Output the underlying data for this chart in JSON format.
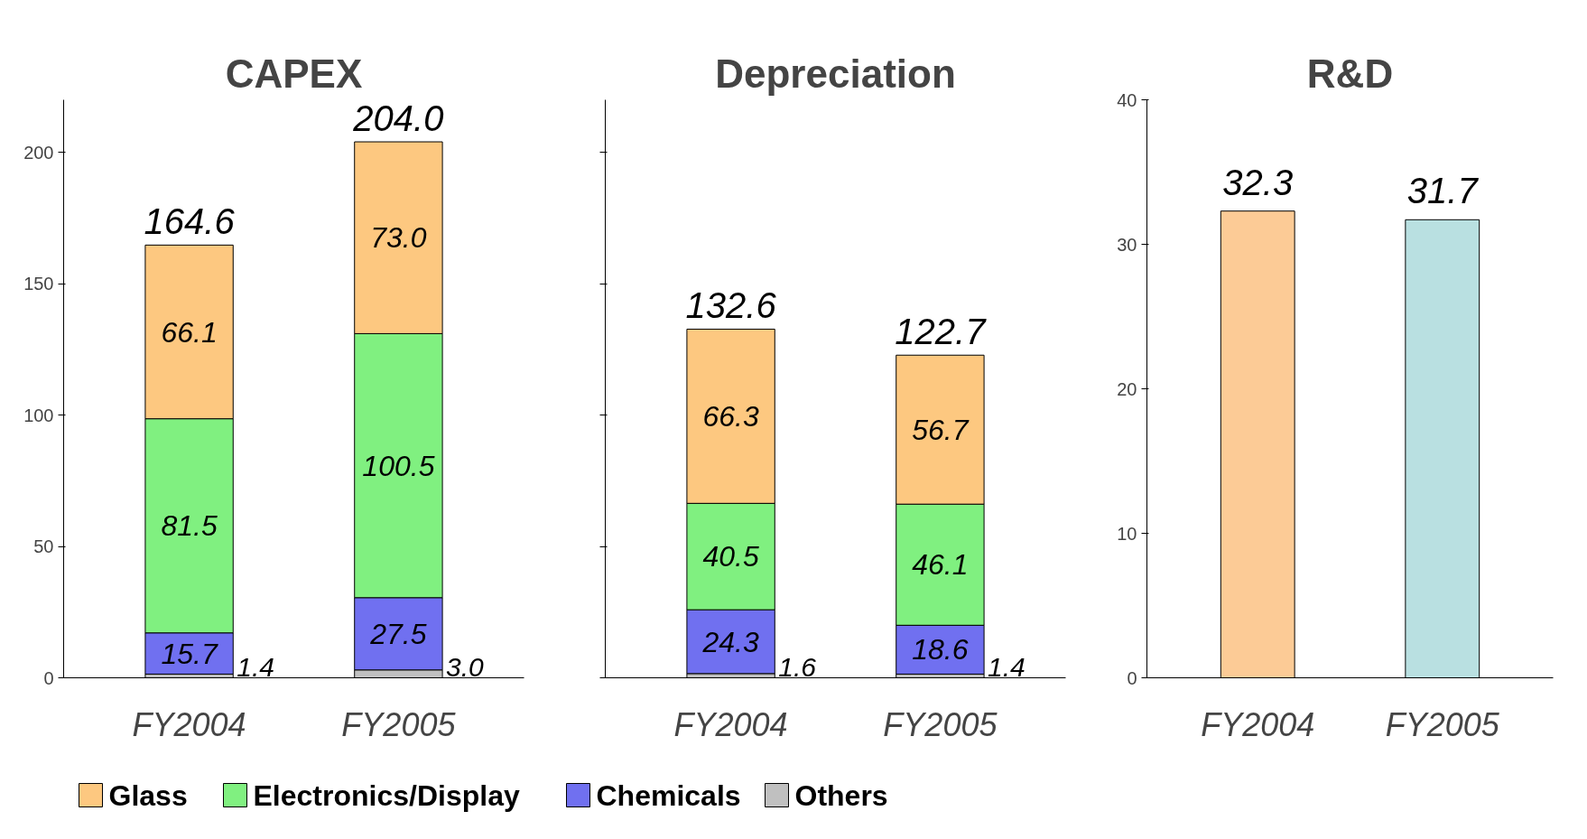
{
  "chart_data": [
    {
      "type": "bar",
      "title": "CAPEX",
      "categories": [
        "FY2004",
        "FY2005"
      ],
      "stacked": true,
      "ylim": [
        0,
        220
      ],
      "yticks": [
        0,
        50,
        100,
        150,
        200
      ],
      "grid": false,
      "legend": "bottom",
      "data_labels": true,
      "totals": [
        "164.6",
        "204.0"
      ],
      "series": [
        {
          "name": "Others",
          "color": "#c0c0c0",
          "values": [
            1.4,
            3.0
          ],
          "value_labels": [
            "1.4",
            "3.0"
          ]
        },
        {
          "name": "Chemicals",
          "color": "#7070f0",
          "values": [
            15.7,
            27.5
          ]
        },
        {
          "name": "Electronics/Display",
          "color": "#80f080",
          "values": [
            81.5,
            100.5
          ]
        },
        {
          "name": "Glass",
          "color": "#fdc880",
          "values": [
            66.1,
            73.0
          ],
          "value_labels": [
            "66.1",
            "73.0"
          ]
        }
      ]
    },
    {
      "type": "bar",
      "title": "Depreciation",
      "categories": [
        "FY2004",
        "FY2005"
      ],
      "stacked": true,
      "ylim": [
        0,
        220
      ],
      "yticks": [
        0,
        50,
        100,
        150,
        200
      ],
      "grid": false,
      "tick_labels": "x",
      "data_labels": true,
      "totals": [
        "132.6",
        "122.7"
      ],
      "series": [
        {
          "color": "#c0c0c0",
          "values": [
            1.6,
            1.4
          ]
        },
        {
          "color": "#7070f0",
          "values": [
            24.3,
            18.6
          ]
        },
        {
          "color": "#80f080",
          "values": [
            40.5,
            46.1
          ]
        },
        {
          "color": "#fdc880",
          "values": [
            66.3,
            56.7
          ]
        }
      ]
    },
    {
      "type": "bar",
      "title": "R&D",
      "categories": [
        "FY2004",
        "FY2005"
      ],
      "ylim": [
        0,
        40
      ],
      "yticks": [
        0,
        10,
        20,
        30,
        40
      ],
      "grid": false,
      "data_labels": true,
      "values": [
        32.3,
        31.7
      ],
      "colors": [
        "#fccb96",
        "#b9e0e1"
      ]
    }
  ]
}
